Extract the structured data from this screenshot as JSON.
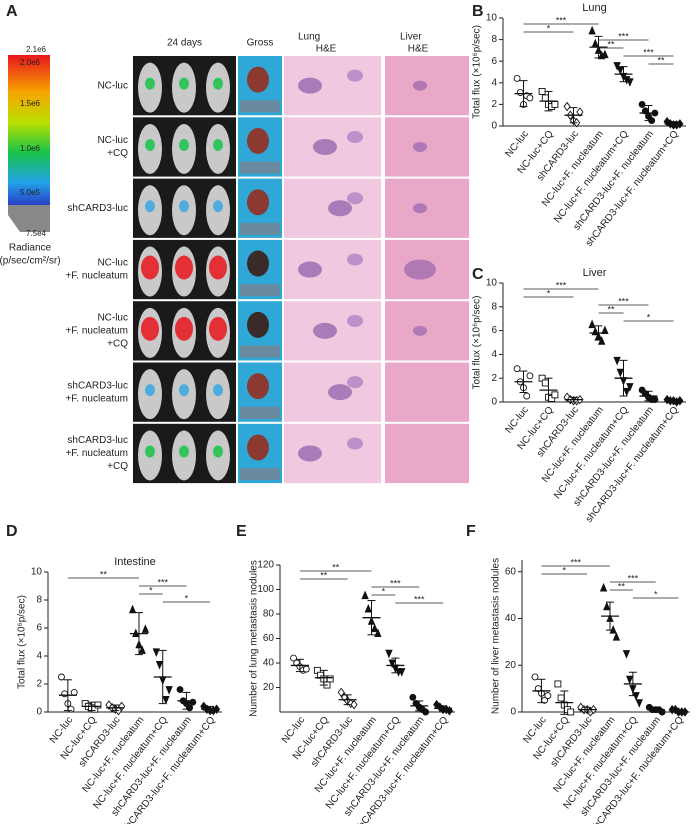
{
  "panel_a": {
    "letter": "A",
    "colorbar": {
      "labels": [
        "2.1e6",
        "2.0e6",
        "1.5e6",
        "1.0e6",
        "5.0e5",
        "7.5e4"
      ],
      "title": "Radiance",
      "unit": "(p/sec/cm²/sr)"
    },
    "columns": [
      [
        "24 days"
      ],
      [
        "Gross"
      ],
      [
        "Lung",
        "H&E"
      ],
      [
        "Liver",
        "H&E"
      ]
    ],
    "rows": [
      [
        "NC-luc"
      ],
      [
        "NC-luc",
        "+CQ"
      ],
      [
        "shCARD3-luc"
      ],
      [
        "NC-luc",
        "+F. nucleatum"
      ],
      [
        "NC-luc",
        "+F. nucleatum",
        "+CQ"
      ],
      [
        "shCARD3-luc",
        "+F. nucleatum"
      ],
      [
        "shCARD3-luc",
        "+F. nucleatum",
        "+CQ"
      ]
    ]
  },
  "chart_data": [
    {
      "type": "dot",
      "letter": "B",
      "title": "Lung",
      "y_label": "Total flux (×10⁶p/sec)",
      "categories": [
        "NC-luc",
        "NC-luc+CQ",
        "shCARD3-luc",
        "NC-luc+F. nucleatum",
        "NC-luc+F. nucleatum+CQ",
        "shCARD3-luc+F. nucleatum",
        "shCARD3-luc+F. nucleatum+CQ"
      ],
      "markers": [
        "circle-open",
        "square-open",
        "diamond-open",
        "triangle",
        "triangle-down",
        "circle",
        "diamond"
      ],
      "values": [
        3.0,
        2.3,
        1.0,
        7.3,
        4.8,
        1.2,
        0.2
      ],
      "errors": [
        1.2,
        0.9,
        0.7,
        1.0,
        0.7,
        0.7,
        0.2
      ],
      "points": [
        [
          4.4,
          3.1,
          2.0,
          2.8,
          2.6
        ],
        [
          3.2,
          2.6,
          2.0,
          1.8,
          2.0
        ],
        [
          1.8,
          1.0,
          0.5,
          0.3,
          1.3
        ],
        [
          8.8,
          7.6,
          7.0,
          6.5,
          6.6
        ],
        [
          5.6,
          5.2,
          4.6,
          4.3,
          4.1
        ],
        [
          2.0,
          1.4,
          0.9,
          0.5,
          1.2
        ],
        [
          0.4,
          0.2,
          0.1,
          0.1,
          0.2
        ]
      ],
      "ylim": [
        0,
        10
      ],
      "yticks": [
        0,
        2,
        4,
        6,
        8,
        10
      ],
      "comparisons": [
        {
          "pair": [
            0,
            3
          ],
          "label": "***"
        },
        {
          "pair": [
            0,
            2
          ],
          "label": "*"
        },
        {
          "pair": [
            3,
            5
          ],
          "label": "***"
        },
        {
          "pair": [
            3,
            4
          ],
          "label": "**"
        },
        {
          "pair": [
            4,
            6
          ],
          "label": "***"
        },
        {
          "pair": [
            5,
            6
          ],
          "label": "**"
        }
      ]
    },
    {
      "type": "dot",
      "letter": "C",
      "title": "Liver",
      "y_label": "Total flux (×10⁶p/sec)",
      "categories": [
        "NC-luc",
        "NC-luc+CQ",
        "shCARD3-luc",
        "NC-luc+F. nucleatum",
        "NC-luc+F. nucleatum+CQ",
        "shCARD3-luc+F. nucleatum",
        "shCARD3-luc+F. nucleatum+CQ"
      ],
      "markers": [
        "circle-open",
        "square-open",
        "diamond-open",
        "triangle",
        "triangle-down",
        "circle",
        "diamond"
      ],
      "values": [
        1.7,
        1.0,
        0.2,
        5.8,
        2.0,
        0.5,
        0.1
      ],
      "errors": [
        0.9,
        1.0,
        0.2,
        0.6,
        1.5,
        0.4,
        0.1
      ],
      "points": [
        [
          2.8,
          1.7,
          1.2,
          0.5,
          2.2
        ],
        [
          2.0,
          1.6,
          0.4,
          0.3,
          0.6
        ],
        [
          0.4,
          0.2,
          0.1,
          0.1,
          0.2
        ],
        [
          6.5,
          5.9,
          5.5,
          5.1,
          6.0
        ],
        [
          3.5,
          2.5,
          1.8,
          0.9,
          1.3
        ],
        [
          1.0,
          0.7,
          0.4,
          0.2,
          0.2
        ],
        [
          0.2,
          0.1,
          0.1,
          0.0,
          0.1
        ]
      ],
      "ylim": [
        0,
        10
      ],
      "yticks": [
        0,
        2,
        4,
        6,
        8,
        10
      ],
      "comparisons": [
        {
          "pair": [
            0,
            3
          ],
          "label": "***"
        },
        {
          "pair": [
            0,
            2
          ],
          "label": "*"
        },
        {
          "pair": [
            3,
            5
          ],
          "label": "***"
        },
        {
          "pair": [
            3,
            4
          ],
          "label": "**"
        },
        {
          "pair": [
            4,
            6
          ],
          "label": "*"
        }
      ]
    },
    {
      "type": "dot",
      "letter": "D",
      "title": "Intestine",
      "y_label": "Total flux (×10⁶p/sec)",
      "categories": [
        "NC-luc",
        "NC-luc+CQ",
        "shCARD3-luc",
        "NC-luc+F. nucleatum",
        "NC-luc+F. nucleatum+CQ",
        "shCARD3-luc+F. nucleatum",
        "shCARD3-luc+F. nucleatum+CQ"
      ],
      "markers": [
        "circle-open",
        "square-open",
        "diamond-open",
        "triangle",
        "triangle-down",
        "circle",
        "diamond"
      ],
      "values": [
        1.2,
        0.4,
        0.3,
        5.6,
        2.5,
        0.8,
        0.2
      ],
      "errors": [
        1.1,
        0.3,
        0.2,
        1.5,
        1.9,
        0.6,
        0.2
      ],
      "points": [
        [
          2.5,
          1.3,
          0.6,
          0.2,
          1.4
        ],
        [
          0.6,
          0.4,
          0.3,
          0.2,
          0.5
        ],
        [
          0.5,
          0.3,
          0.2,
          0.1,
          0.4
        ],
        [
          7.3,
          5.6,
          4.8,
          4.4,
          5.9
        ],
        [
          4.3,
          3.4,
          2.3,
          0.9,
          1.6
        ],
        [
          1.6,
          0.8,
          0.6,
          0.3,
          0.7
        ],
        [
          0.4,
          0.2,
          0.1,
          0.1,
          0.2
        ]
      ],
      "ylim": [
        0,
        10
      ],
      "yticks": [
        0,
        2,
        4,
        6,
        8,
        10
      ],
      "comparisons": [
        {
          "pair": [
            0,
            3
          ],
          "label": "**"
        },
        {
          "pair": [
            3,
            5
          ],
          "label": "***"
        },
        {
          "pair": [
            3,
            4
          ],
          "label": "*"
        },
        {
          "pair": [
            4,
            6
          ],
          "label": "*"
        }
      ]
    },
    {
      "type": "dot",
      "letter": "E",
      "y_label": "Number of lung metastasis nodules",
      "categories": [
        "NC-luc",
        "NC-luc+CQ",
        "shCARD3-luc",
        "NC-luc+F. nucleatum",
        "NC-luc+F. nucleatum+CQ",
        "shCARD3-luc+F. nucleatum",
        "shCARD3-luc+F. nucleatum+CQ"
      ],
      "markers": [
        "circle-open",
        "square-open",
        "diamond-open",
        "triangle",
        "triangle-down",
        "circle",
        "diamond"
      ],
      "values": [
        38,
        28,
        10,
        77,
        38,
        5,
        3
      ],
      "errors": [
        5,
        6,
        4,
        14,
        6,
        4,
        2
      ],
      "points": [
        [
          44,
          40,
          37,
          34,
          35
        ],
        [
          34,
          30,
          27,
          22,
          27
        ],
        [
          16,
          12,
          9,
          7,
          6
        ],
        [
          95,
          84,
          74,
          68,
          64
        ],
        [
          48,
          40,
          36,
          33,
          33
        ],
        [
          12,
          7,
          4,
          2,
          0
        ],
        [
          6,
          4,
          2,
          2,
          1
        ]
      ],
      "ylim": [
        0,
        120
      ],
      "yticks": [
        20,
        40,
        60,
        80,
        100,
        120
      ],
      "comparisons": [
        {
          "pair": [
            0,
            3
          ],
          "label": "**"
        },
        {
          "pair": [
            0,
            2
          ],
          "label": "**"
        },
        {
          "pair": [
            3,
            5
          ],
          "label": "***"
        },
        {
          "pair": [
            3,
            4
          ],
          "label": "*"
        },
        {
          "pair": [
            4,
            6
          ],
          "label": "***"
        }
      ]
    },
    {
      "type": "dot",
      "letter": "F",
      "y_label": "Number of liver metastasis nodules",
      "categories": [
        "NC-luc",
        "NC-luc+CQ",
        "shCARD3-luc",
        "NC-luc+F. nucleatum",
        "NC-luc+F. nucleatum+CQ",
        "shCARD3-luc+F. nucleatum",
        "shCARD3-luc+F. nucleatum+CQ"
      ],
      "markers": [
        "circle-open",
        "square-open",
        "diamond-open",
        "triangle",
        "triangle-down",
        "circle",
        "diamond"
      ],
      "values": [
        9,
        4,
        1,
        41,
        12,
        1,
        0.5
      ],
      "errors": [
        5,
        5,
        1,
        6,
        5,
        0.5,
        0.3
      ],
      "points": [
        [
          15,
          10,
          8,
          5,
          7
        ],
        [
          12,
          6,
          3,
          1,
          0
        ],
        [
          2,
          1,
          1,
          0,
          1
        ],
        [
          53,
          45,
          40,
          35,
          32
        ],
        [
          25,
          14,
          10,
          7,
          4
        ],
        [
          2,
          1,
          1,
          1,
          0
        ],
        [
          1,
          1,
          0,
          0,
          0
        ]
      ],
      "ylim": [
        0,
        65
      ],
      "yticks": [
        0,
        20,
        40,
        60
      ],
      "comparisons": [
        {
          "pair": [
            0,
            3
          ],
          "label": "***"
        },
        {
          "pair": [
            0,
            2
          ],
          "label": "*"
        },
        {
          "pair": [
            3,
            5
          ],
          "label": "***"
        },
        {
          "pair": [
            3,
            4
          ],
          "label": "**"
        },
        {
          "pair": [
            4,
            6
          ],
          "label": "*"
        }
      ]
    }
  ]
}
